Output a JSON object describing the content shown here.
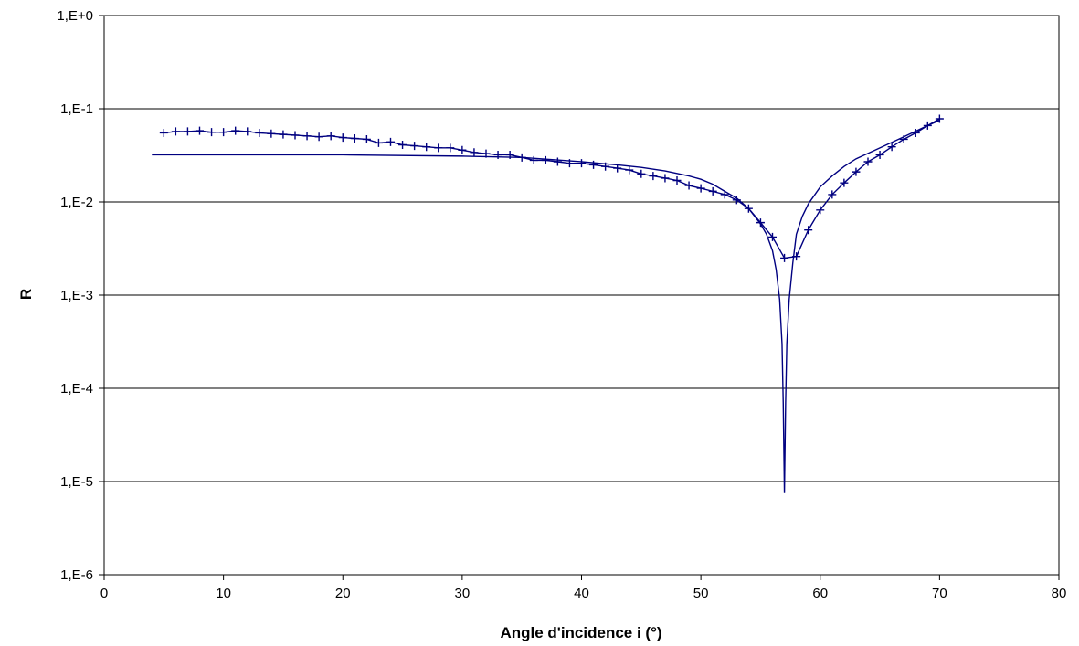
{
  "chart_data": {
    "type": "line",
    "title": "",
    "xlabel": "Angle d'incidence i (°)",
    "ylabel": "R",
    "xlim": [
      0,
      80
    ],
    "ylim": [
      1e-06,
      1
    ],
    "yscale": "log",
    "grid": "horizontal",
    "legend": "none",
    "colors": {
      "series": "#000080",
      "grid": "#000000",
      "axis": "#000000"
    },
    "x_ticks": [
      {
        "value": 0,
        "label": "0"
      },
      {
        "value": 10,
        "label": "10"
      },
      {
        "value": 20,
        "label": "20"
      },
      {
        "value": 30,
        "label": "30"
      },
      {
        "value": 40,
        "label": "40"
      },
      {
        "value": 50,
        "label": "50"
      },
      {
        "value": 60,
        "label": "60"
      },
      {
        "value": 70,
        "label": "70"
      },
      {
        "value": 80,
        "label": "80"
      }
    ],
    "y_ticks": [
      {
        "value": 1,
        "label": "1,E+0"
      },
      {
        "value": 0.1,
        "label": "1,E-1"
      },
      {
        "value": 0.01,
        "label": "1,E-2"
      },
      {
        "value": 0.001,
        "label": "1,E-3"
      },
      {
        "value": 0.0001,
        "label": "1,E-4"
      },
      {
        "value": 1e-05,
        "label": "1,E-5"
      },
      {
        "value": 1e-06,
        "label": "1,E-6"
      }
    ],
    "series": [
      {
        "style": "line-with-plus-markers",
        "x": [
          5,
          6,
          7,
          8,
          9,
          10,
          11,
          12,
          13,
          14,
          15,
          16,
          17,
          18,
          19,
          20,
          21,
          22,
          23,
          24,
          25,
          26,
          27,
          28,
          29,
          30,
          31,
          32,
          33,
          34,
          35,
          36,
          37,
          38,
          39,
          40,
          41,
          42,
          43,
          44,
          45,
          46,
          47,
          48,
          49,
          50,
          51,
          52,
          53,
          54,
          55,
          56,
          57,
          58,
          59,
          60,
          61,
          62,
          63,
          64,
          65,
          66,
          67,
          68,
          69,
          70
        ],
        "y": [
          0.055,
          0.057,
          0.057,
          0.058,
          0.056,
          0.056,
          0.058,
          0.057,
          0.055,
          0.054,
          0.053,
          0.052,
          0.051,
          0.05,
          0.051,
          0.049,
          0.048,
          0.047,
          0.043,
          0.044,
          0.041,
          0.04,
          0.039,
          0.038,
          0.038,
          0.036,
          0.034,
          0.033,
          0.032,
          0.032,
          0.03,
          0.028,
          0.028,
          0.027,
          0.026,
          0.026,
          0.025,
          0.024,
          0.023,
          0.022,
          0.02,
          0.019,
          0.018,
          0.017,
          0.015,
          0.014,
          0.013,
          0.012,
          0.0105,
          0.0085,
          0.006,
          0.0042,
          0.0025,
          0.0026,
          0.005,
          0.0082,
          0.012,
          0.016,
          0.021,
          0.027,
          0.032,
          0.039,
          0.047,
          0.055,
          0.066,
          0.078
        ]
      },
      {
        "style": "line",
        "x": [
          4,
          10,
          20,
          30,
          35,
          40,
          43,
          45,
          47,
          49,
          50,
          51,
          52,
          53,
          54,
          55,
          55.5,
          56,
          56.3,
          56.6,
          56.8,
          56.9,
          57,
          57.1,
          57.2,
          57.4,
          57.7,
          58,
          58.5,
          59,
          60,
          61,
          62,
          63,
          65,
          67,
          69,
          70
        ],
        "y": [
          0.032,
          0.032,
          0.032,
          0.031,
          0.03,
          0.027,
          0.025,
          0.0235,
          0.0215,
          0.019,
          0.0175,
          0.0155,
          0.013,
          0.011,
          0.0085,
          0.0058,
          0.0045,
          0.003,
          0.0019,
          0.0009,
          0.0003,
          7e-05,
          7.5e-06,
          7e-05,
          0.0003,
          0.0009,
          0.0022,
          0.0045,
          0.007,
          0.0095,
          0.0145,
          0.019,
          0.024,
          0.029,
          0.038,
          0.05,
          0.066,
          0.075
        ]
      }
    ]
  }
}
